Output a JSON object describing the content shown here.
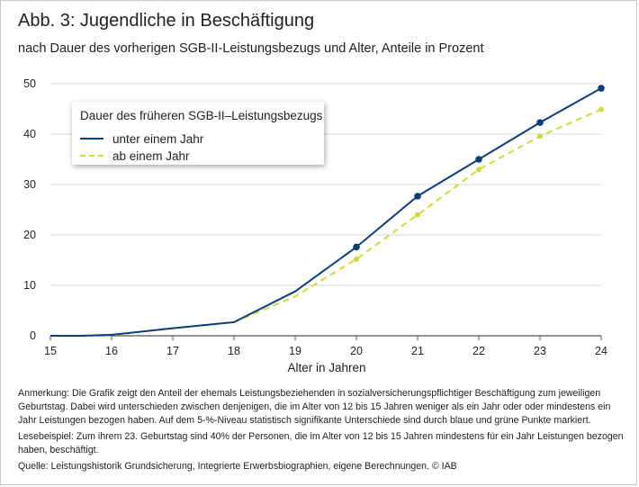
{
  "header": {
    "title": "Abb. 3: Jugendliche in Beschäftigung",
    "subtitle": "nach Dauer des vorherigen SGB-II-Leistungsbezugs und Alter, Anteile in Prozent"
  },
  "legend": {
    "title": "Dauer des früheren SGB-II–Leistungsbezugs",
    "placement": "top-left"
  },
  "notes": {
    "anmerkung": "Anmerkung: Die Grafik zeigt den Anteil der ehemals Leistungsbeziehenden in sozialversicherungspflichtiger Beschäftigung zum jeweiligen Geburtstag. Dabei wird unterschieden zwischen denjenigen, die im Alter von 12 bis 15 Jahren weniger als ein Jahr oder oder mindestens ein Jahr Leistungen bezogen haben. Auf dem 5-%-Niveau statistisch signifikante Unterschiede sind durch blaue und grüne Punkte markiert.",
    "lesebeispiel": "Lesebeispiel: Zum ihrem 23. Geburtstag sind 40% der Personen, die im Alter von 12 bis 15 Jahren mindestens für ein Jahr Leistungen bezogen haben, beschäftigt.",
    "quelle": "Quelle: Leistungshistorik Grundsicherung, Integrierte Erwerbsbiographien, eigene Berechnungen.  © IAB"
  },
  "chart_data": {
    "type": "line",
    "xlabel": "Alter in Jahren",
    "ylabel": "",
    "x": [
      15,
      15.5,
      16,
      17,
      18,
      19,
      20,
      21,
      22,
      23,
      24
    ],
    "xticks": [
      "15",
      "16",
      "17",
      "18",
      "19",
      "20",
      "21",
      "22",
      "23",
      "24"
    ],
    "yticks": [
      "0",
      "10",
      "20",
      "30",
      "40",
      "50"
    ],
    "xlim": [
      15,
      24
    ],
    "ylim": [
      0,
      50
    ],
    "grid": "horizontal",
    "series": [
      {
        "name": "unter einem Jahr",
        "color": "#0b3f7a",
        "style": "solid",
        "values": [
          0,
          0,
          0.2,
          1.5,
          2.7,
          8.8,
          17.6,
          27.7,
          35.0,
          42.3,
          49.1
        ],
        "markers_at": [
          20,
          21,
          22,
          23,
          24
        ]
      },
      {
        "name": "ab einem Jahr",
        "color": "#cfdb3a",
        "style": "dashed",
        "values": [
          0,
          0,
          0.1,
          1.5,
          2.7,
          7.8,
          15.2,
          24.0,
          33.0,
          39.6,
          44.9
        ],
        "markers_at": [
          20,
          21,
          22,
          23,
          24
        ]
      }
    ]
  }
}
